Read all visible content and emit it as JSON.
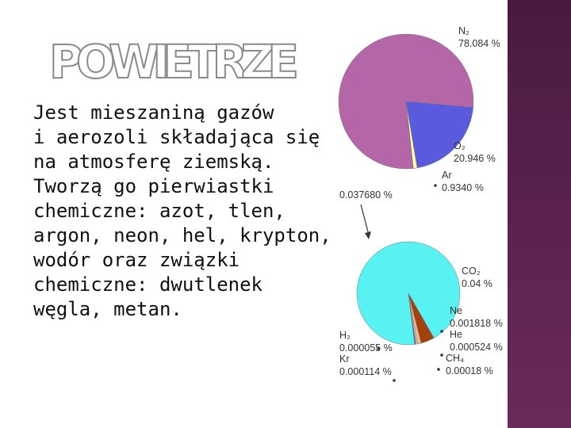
{
  "title": "POWIETRZE",
  "body": [
    "Jest mieszaniną gazów",
    "i aerozoli składająca się",
    "na atmosferę ziemską.",
    "Tworzą go pierwiastki",
    "chemiczne: azot, tlen,",
    "argon, neon, hel, krypton,",
    "wodór oraz związki",
    "chemiczne: dwutlenek",
    "węgla, metan."
  ],
  "chart_data": [
    {
      "type": "pie",
      "categories": [
        "N₂",
        "O₂",
        "Ar",
        null
      ],
      "values": [
        78.084,
        20.946,
        0.934,
        0.03768
      ],
      "value_labels": [
        "78.084 %",
        "20.946 %",
        "0.9340 %",
        "0.037680 %"
      ],
      "colors": [
        "#b466a8",
        "#5a5ade",
        "#ffffa8",
        "#e0e090"
      ]
    },
    {
      "type": "pie",
      "categories": [
        "CO₂",
        "Ne",
        "He",
        "CH₄",
        "Kr",
        "H₂"
      ],
      "values": [
        0.04,
        0.001818,
        0.000524,
        0.00018,
        0.000114,
        5.5e-05
      ],
      "value_labels": [
        "0.04 %",
        "0.001818 %",
        "0.000524 %",
        "0.00018 %",
        "0.000114 %",
        "0.000055 %"
      ],
      "colors": [
        "#58f2f2",
        "#a4400c",
        "#f0b890",
        "#e0e0e0",
        "#4a4ae0",
        "#9a6ab0"
      ]
    }
  ]
}
